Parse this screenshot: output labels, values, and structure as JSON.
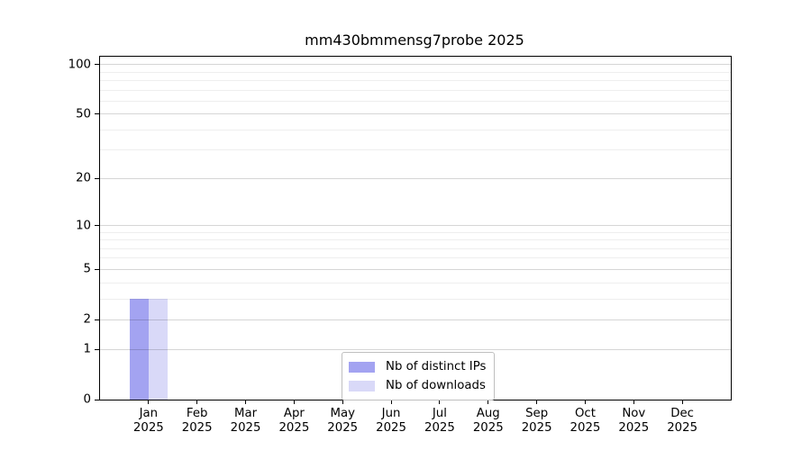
{
  "title": "mm430bmmensg7probe 2025",
  "chart_data": {
    "type": "bar",
    "title": "mm430bmmensg7probe 2025",
    "categories": [
      "Jan",
      "Feb",
      "Mar",
      "Apr",
      "May",
      "Jun",
      "Jul",
      "Aug",
      "Sep",
      "Oct",
      "Nov",
      "Dec"
    ],
    "year_label": "2025",
    "series": [
      {
        "name": "Nb of distinct IPs",
        "color": "#a3a3f1",
        "values": [
          3,
          0,
          0,
          0,
          0,
          0,
          0,
          0,
          0,
          0,
          0,
          0
        ]
      },
      {
        "name": "Nb of downloads",
        "color": "#d9d9f8",
        "values": [
          3,
          0,
          0,
          0,
          0,
          0,
          0,
          0,
          0,
          0,
          0,
          0
        ]
      }
    ],
    "y_ticks": [
      0,
      1,
      2,
      5,
      10,
      20,
      50,
      100
    ],
    "minor_grid_values": [
      3,
      4,
      6,
      7,
      8,
      9,
      30,
      40,
      60,
      70,
      80,
      90
    ],
    "ylim": [
      0,
      111
    ],
    "xlabel": "",
    "ylabel": "",
    "scale": "log1p",
    "grid": "horizontal",
    "legend_position": "lower center",
    "grid_major_color": "#d6d6d6",
    "grid_minor_color": "#efefef"
  }
}
